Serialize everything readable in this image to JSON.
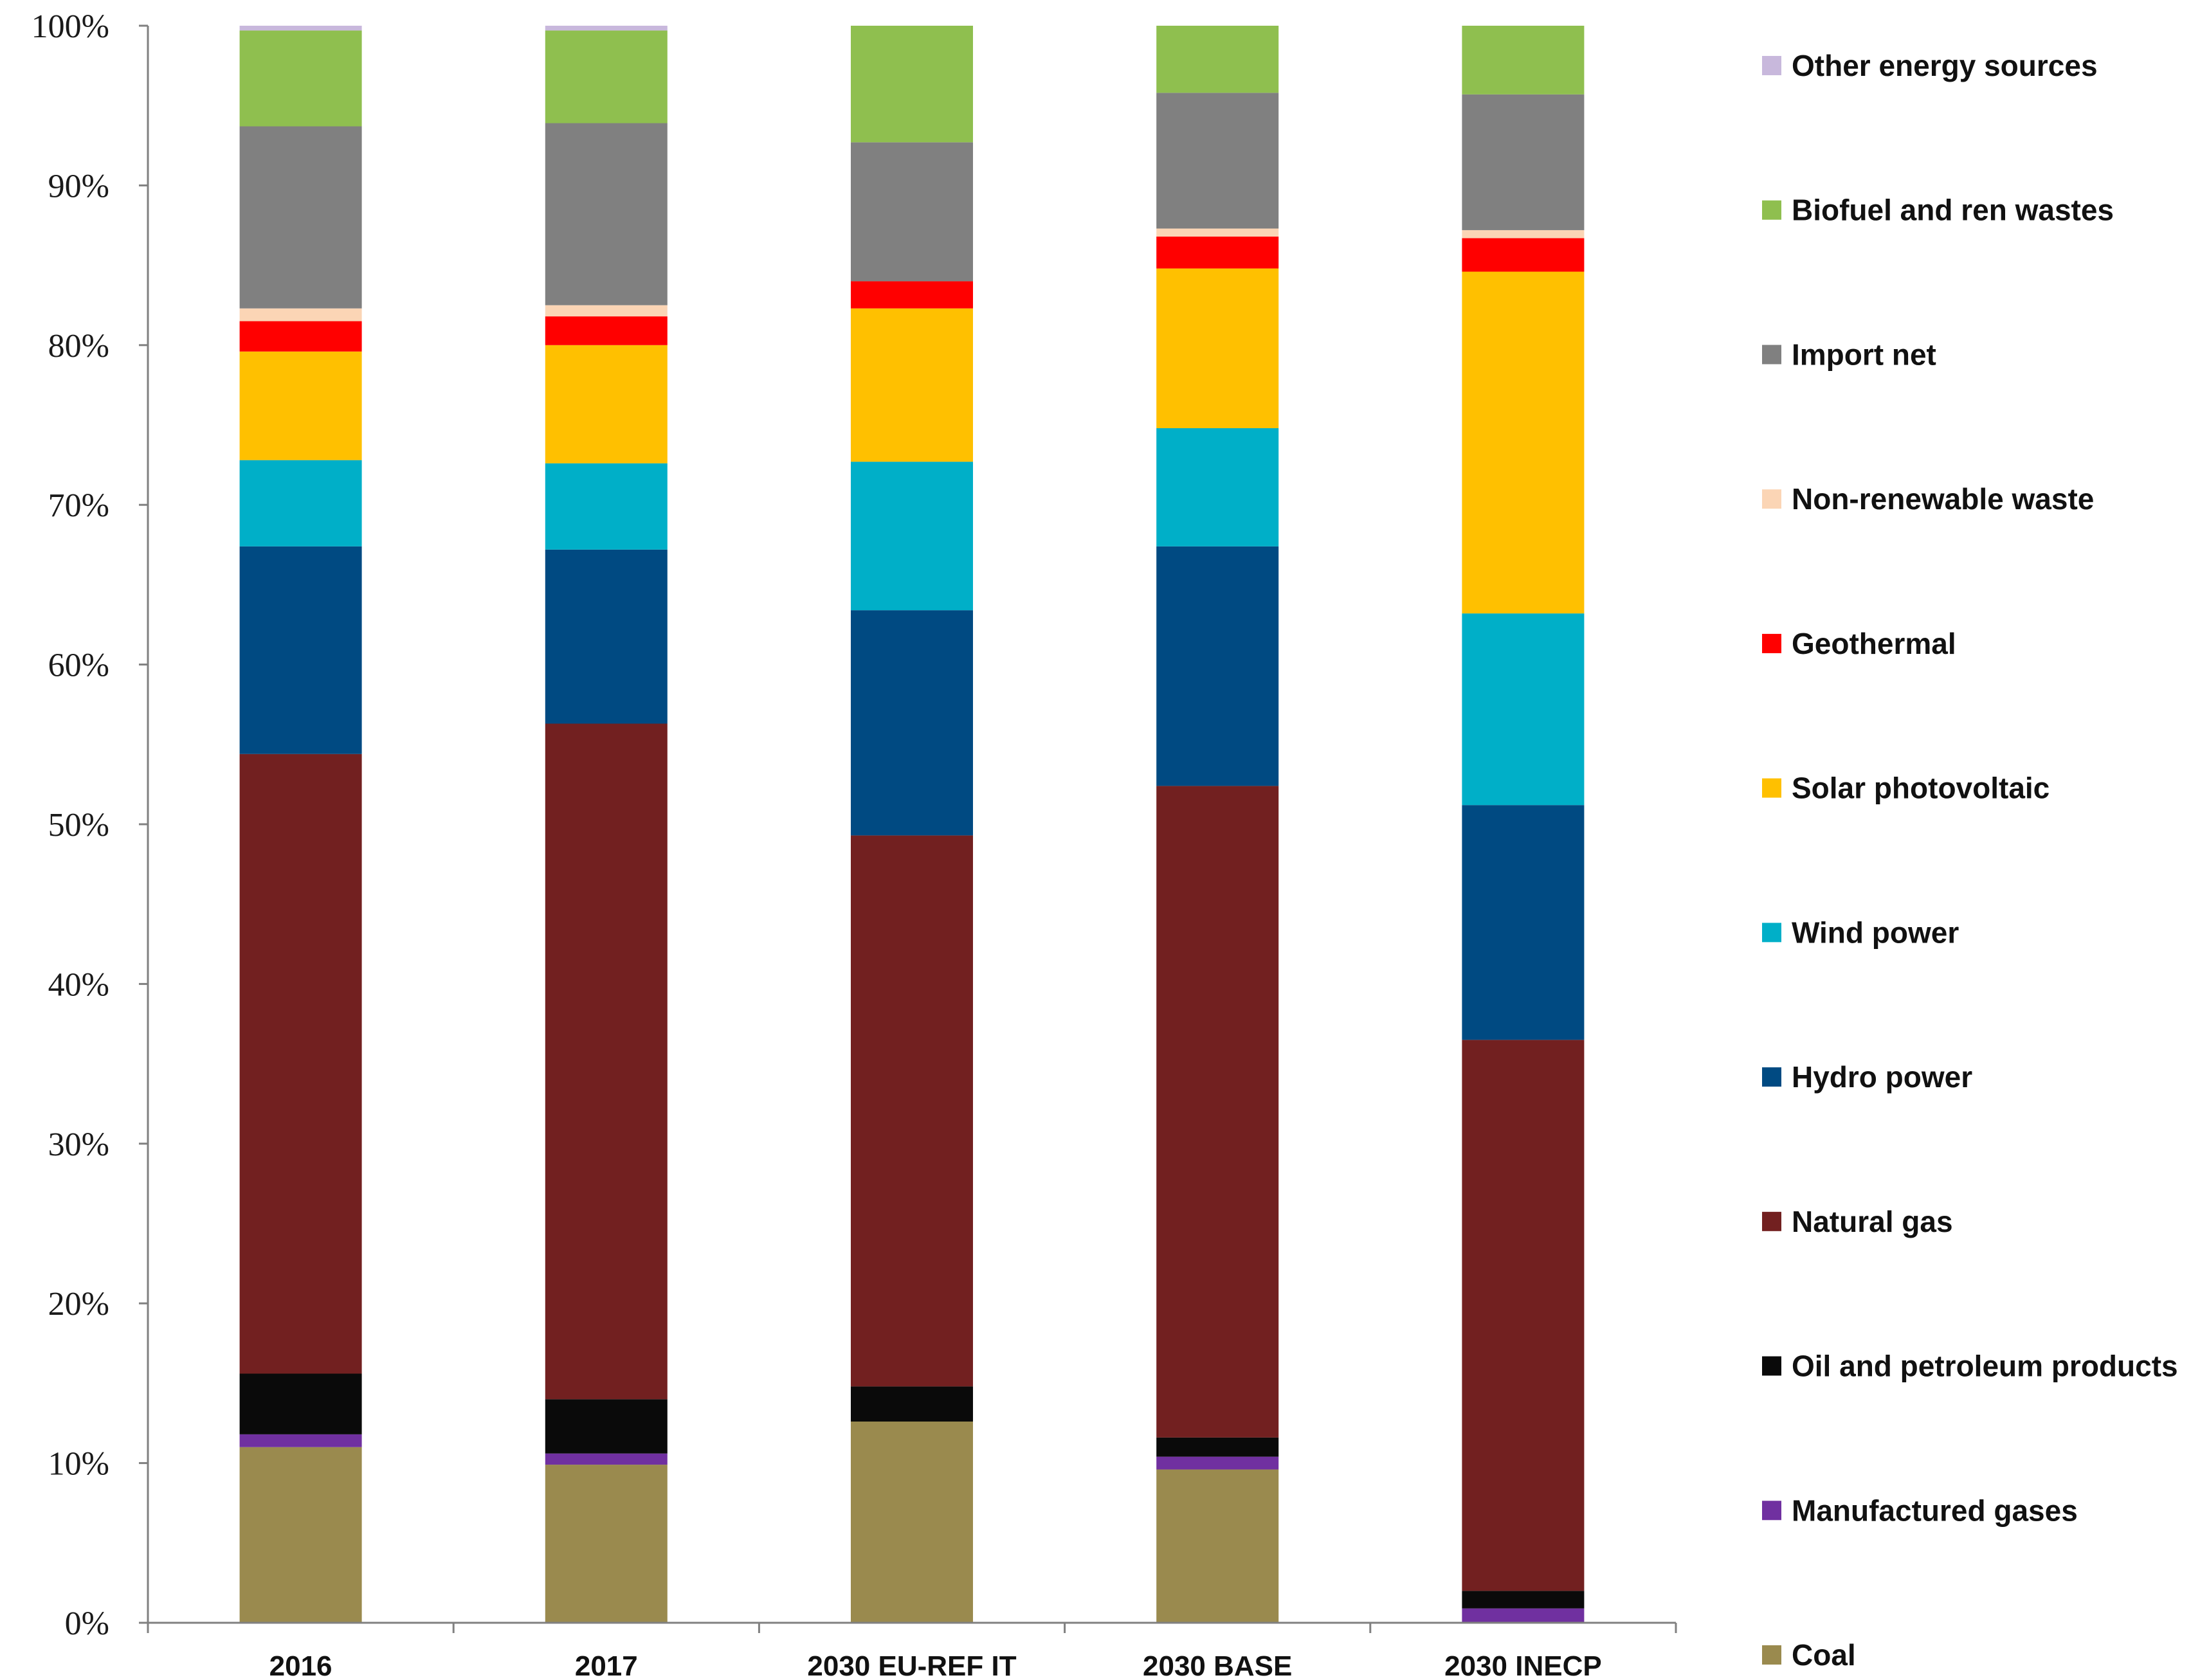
{
  "chart_data": {
    "type": "bar",
    "stacked": true,
    "percent": true,
    "title": "",
    "xlabel": "",
    "ylabel": "",
    "ylim": [
      0,
      100
    ],
    "y_tick_labels": [
      "0%",
      "10%",
      "20%",
      "30%",
      "40%",
      "50%",
      "60%",
      "70%",
      "80%",
      "90%",
      "100%"
    ],
    "categories": [
      "2016",
      "2017",
      "2030 EU-REF IT",
      "2030 BASE",
      "2030 INECP"
    ],
    "legend_position": "right",
    "series": [
      {
        "name": "Coal",
        "color": "#9a8a4e",
        "values": [
          11.0,
          9.9,
          12.6,
          9.6,
          0.0
        ]
      },
      {
        "name": "Manufactured gases",
        "color": "#7030a0",
        "values": [
          0.8,
          0.7,
          0.0,
          0.8,
          0.9
        ]
      },
      {
        "name": "Oil and petroleum products",
        "color": "#0a0a0a",
        "values": [
          3.8,
          3.4,
          2.2,
          1.2,
          1.1
        ]
      },
      {
        "name": "Natural gas",
        "color": "#722020",
        "values": [
          38.8,
          42.3,
          34.5,
          40.8,
          34.5
        ]
      },
      {
        "name": "Hydro power",
        "color": "#004a82",
        "values": [
          13.0,
          10.9,
          14.1,
          15.0,
          14.7
        ]
      },
      {
        "name": "Wind power",
        "color": "#00afc8",
        "values": [
          5.4,
          5.4,
          9.3,
          7.4,
          12.0
        ]
      },
      {
        "name": "Solar photovoltaic",
        "color": "#ffc000",
        "values": [
          6.8,
          7.4,
          9.6,
          10.0,
          21.4
        ]
      },
      {
        "name": "Geothermal",
        "color": "#ff0000",
        "values": [
          1.9,
          1.8,
          1.7,
          2.0,
          2.1
        ]
      },
      {
        "name": "Non-renewable waste",
        "color": "#fbd5b5",
        "values": [
          0.8,
          0.7,
          0.0,
          0.5,
          0.5
        ]
      },
      {
        "name": "Import net",
        "color": "#808080",
        "values": [
          11.4,
          11.4,
          8.7,
          8.5,
          8.5
        ]
      },
      {
        "name": "Biofuel and ren wastes",
        "color": "#8fbf4f",
        "values": [
          6.0,
          5.8,
          7.3,
          4.2,
          4.3
        ]
      },
      {
        "name": "Other energy sources",
        "color": "#c8b8dc",
        "values": [
          0.3,
          0.3,
          0.0,
          0.0,
          0.0
        ]
      }
    ]
  }
}
